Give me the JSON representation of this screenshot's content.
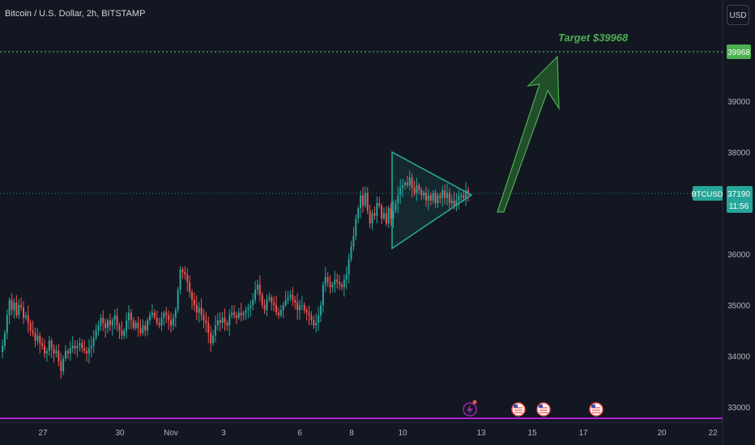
{
  "header": {
    "title": "Bitcoin / U.S. Dollar, 2h, BITSTAMP",
    "currency": "USD"
  },
  "colors": {
    "background": "#131722",
    "up": "#26a69a",
    "down": "#ef5350",
    "target_line": "#4caf50",
    "price_line": "#26a69a",
    "triangle": "#26a69a",
    "arrow": "#2e7d32",
    "bottom_line": "#b21fd6",
    "axis_text": "#b2b5be"
  },
  "chart_data": {
    "type": "candlestick",
    "symbol_label": "BTCUSD",
    "y_ticks": [
      "33000",
      "34000",
      "35000",
      "36000",
      "37000",
      "38000",
      "39000"
    ],
    "ylim": [
      32800,
      40400
    ],
    "x_ticks": [
      "27",
      "30",
      "Nov",
      "3",
      "6",
      "8",
      "10",
      "13",
      "15",
      "17",
      "20",
      "22"
    ],
    "current_price": {
      "value": 37190,
      "label": "37190",
      "countdown": "11:56"
    },
    "target": {
      "value": 39968,
      "label": "39968",
      "annotation": "Target $39968"
    },
    "bottom_line_value": 32820,
    "event_markers": [
      {
        "type": "lightning-event",
        "x_position_label": "between 12 and 13"
      },
      {
        "type": "us-flag-event",
        "x_position_label": "14"
      },
      {
        "type": "us-flag-event",
        "x_position_label": "15"
      },
      {
        "type": "us-flag-event",
        "x_position_label": "16"
      }
    ],
    "closes": [
      34200,
      34450,
      34800,
      35100,
      34900,
      35050,
      34800,
      35000,
      34950,
      34750,
      34800,
      34650,
      34500,
      34450,
      34300,
      34400,
      34250,
      34200,
      34050,
      34100,
      34300,
      34150,
      34050,
      34100,
      33900,
      33700,
      33950,
      34100,
      34050,
      34150,
      34200,
      34150,
      34200,
      34250,
      34150,
      34100,
      34050,
      34150,
      34200,
      34350,
      34500,
      34600,
      34750,
      34650,
      34550,
      34700,
      34600,
      34700,
      34800,
      34600,
      34500,
      34400,
      34500,
      34700,
      34850,
      34700,
      34550,
      34650,
      34550,
      34450,
      34600,
      34500,
      34700,
      34800,
      34850,
      34750,
      34650,
      34600,
      34750,
      34850,
      34800,
      34700,
      34600,
      34750,
      34900,
      35300,
      35700,
      35650,
      35600,
      35450,
      35250,
      35100,
      35000,
      34850,
      34950,
      34800,
      34700,
      34650,
      34450,
      34250,
      34400,
      34600,
      34700,
      34650,
      34750,
      34650,
      34600,
      34800,
      34850,
      34800,
      34750,
      34850,
      34800,
      34850,
      34900,
      34950,
      35000,
      35100,
      35300,
      35400,
      35200,
      35000,
      34900,
      35100,
      35150,
      35050,
      35000,
      34850,
      34800,
      34900,
      35000,
      35100,
      35150,
      35200,
      35100,
      35050,
      34900,
      35000,
      35000,
      34900,
      34850,
      34800,
      34700,
      34600,
      34650,
      34800,
      35000,
      35400,
      35550,
      35450,
      35350,
      35400,
      35500,
      35450,
      35400,
      35350,
      35500,
      35600,
      35900,
      36150,
      36350,
      36700,
      36900,
      37150,
      36950,
      37200,
      36850,
      36600,
      36800,
      36750,
      37000,
      36950,
      36700,
      36800,
      36600,
      36900,
      36700,
      36850,
      37000,
      37150,
      37300,
      37350,
      37400,
      37350,
      37500,
      37300,
      37200,
      37350,
      37250,
      37150,
      37200,
      37050,
      37150,
      37050,
      37200,
      37000,
      37150,
      37100,
      37250,
      37100,
      37200,
      37000,
      37050,
      36950,
      37050,
      37150,
      37150,
      37100,
      37250,
      37190
    ]
  }
}
